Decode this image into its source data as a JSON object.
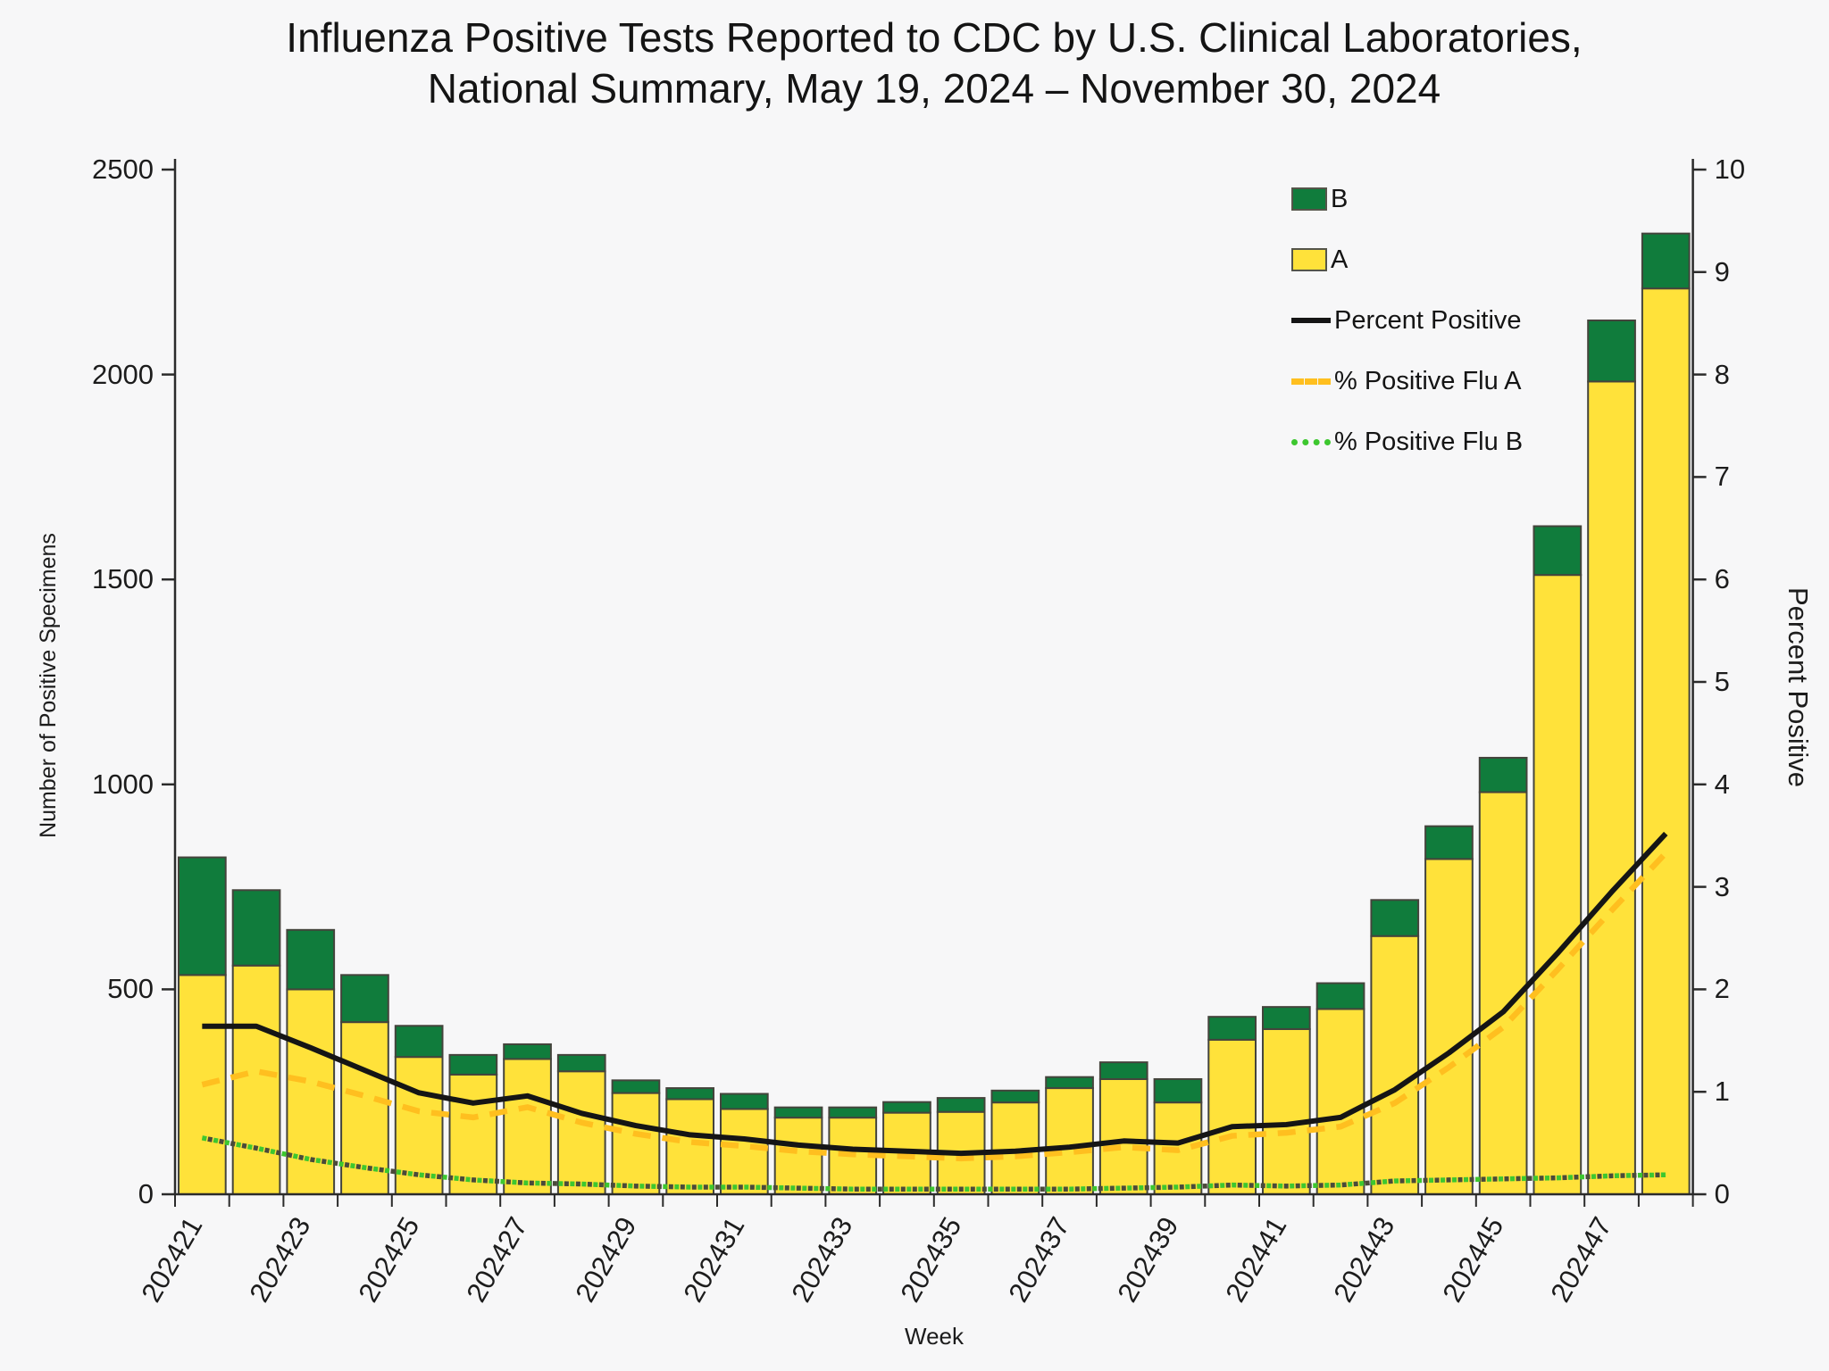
{
  "title": {
    "line1": "Influenza Positive Tests Reported to CDC by U.S. Clinical Laboratories,",
    "line2": "National Summary, May 19, 2024 – November 30, 2024"
  },
  "axes": {
    "left": {
      "title": "Number of Positive Specimens",
      "ticks": [
        "0",
        "500",
        "1000",
        "1500",
        "2000",
        "2500"
      ]
    },
    "right": {
      "title": "Percent Positive",
      "ticks": [
        "0",
        "1",
        "2",
        "3",
        "4",
        "5",
        "6",
        "7",
        "8",
        "9",
        "10"
      ]
    },
    "x": {
      "title": "Week",
      "labels": [
        "202421",
        "202423",
        "202425",
        "202427",
        "202429",
        "202431",
        "202433",
        "202435",
        "202437",
        "202439",
        "202441",
        "202443",
        "202445",
        "202447"
      ]
    }
  },
  "legend": {
    "items": [
      {
        "label": "B",
        "swatch": "box",
        "color": "#107C3C"
      },
      {
        "label": "A",
        "swatch": "box",
        "color": "#FFE23A"
      },
      {
        "label": "Percent Positive",
        "swatch": "solid",
        "color": "#151515"
      },
      {
        "label": "% Positive Flu A",
        "swatch": "dashed",
        "color": "#FFBF1F"
      },
      {
        "label": "% Positive Flu B",
        "swatch": "dotted",
        "color": "#3DC72F"
      }
    ]
  },
  "colors": {
    "background": "#f7f7f8",
    "bar_a_fill": "#FFE23A",
    "bar_b_fill": "#107C3C",
    "bar_stroke": "#44443c",
    "line_percent_positive": "#151515",
    "line_pct_flu_a": "#FFBF1F",
    "line_pct_flu_b": "#3DC72F",
    "line_pct_flu_b_alt_dot": "#4a4a3a",
    "axis": "#2b2b2b",
    "text": "#1c1c1c"
  },
  "chart_data": {
    "type": "bar",
    "subtype": "stacked-bars-with-line-overlay",
    "title": "Influenza Positive Tests Reported to CDC by U.S. Clinical Laboratories, National Summary, May 19, 2024 – November 30, 2024",
    "xlabel": "Week",
    "ylabel_left": "Number of Positive Specimens",
    "ylabel_right": "Percent Positive",
    "left_ylim": [
      0,
      2500
    ],
    "right_ylim": [
      0,
      10
    ],
    "grid": false,
    "legend_position": "upper-right-inside",
    "categories": [
      "202421",
      "202422",
      "202423",
      "202424",
      "202425",
      "202426",
      "202427",
      "202428",
      "202429",
      "202430",
      "202431",
      "202432",
      "202433",
      "202434",
      "202435",
      "202436",
      "202437",
      "202438",
      "202439",
      "202440",
      "202441",
      "202442",
      "202443",
      "202444",
      "202445",
      "202446",
      "202447",
      "202448"
    ],
    "series": [
      {
        "name": "A",
        "type": "bar",
        "stack": "positives",
        "axis": "left",
        "values": [
          535,
          558,
          500,
          420,
          335,
          292,
          330,
          300,
          247,
          232,
          208,
          187,
          187,
          199,
          201,
          224,
          259,
          281,
          224,
          377,
          403,
          452,
          630,
          818,
          981,
          1511,
          1983,
          2210
        ]
      },
      {
        "name": "B",
        "type": "bar",
        "stack": "positives",
        "axis": "left",
        "values": [
          287,
          184,
          145,
          115,
          76,
          48,
          36,
          40,
          31,
          27,
          37,
          25,
          25,
          26,
          34,
          29,
          27,
          41,
          57,
          56,
          54,
          63,
          88,
          80,
          84,
          119,
          149,
          134
        ]
      },
      {
        "name": "Percent Positive",
        "type": "line",
        "style": "solid",
        "axis": "right",
        "values": [
          1.64,
          1.64,
          1.43,
          1.21,
          0.99,
          0.89,
          0.96,
          0.79,
          0.67,
          0.58,
          0.54,
          0.48,
          0.44,
          0.42,
          0.4,
          0.42,
          0.46,
          0.52,
          0.5,
          0.66,
          0.68,
          0.75,
          1.02,
          1.38,
          1.78,
          2.35,
          2.95,
          3.52
        ]
      },
      {
        "name": "% Positive Flu A",
        "type": "line",
        "style": "dashed",
        "axis": "right",
        "values": [
          1.07,
          1.2,
          1.1,
          0.96,
          0.81,
          0.75,
          0.85,
          0.7,
          0.59,
          0.51,
          0.47,
          0.42,
          0.39,
          0.37,
          0.35,
          0.37,
          0.41,
          0.46,
          0.43,
          0.57,
          0.6,
          0.66,
          0.89,
          1.24,
          1.63,
          2.19,
          2.77,
          3.33
        ]
      },
      {
        "name": "% Positive Flu B",
        "type": "line",
        "style": "dotted",
        "axis": "right",
        "values": [
          0.55,
          0.45,
          0.34,
          0.26,
          0.19,
          0.14,
          0.11,
          0.1,
          0.08,
          0.07,
          0.07,
          0.06,
          0.05,
          0.05,
          0.05,
          0.05,
          0.05,
          0.06,
          0.07,
          0.09,
          0.08,
          0.09,
          0.13,
          0.14,
          0.15,
          0.16,
          0.18,
          0.19
        ]
      }
    ]
  }
}
